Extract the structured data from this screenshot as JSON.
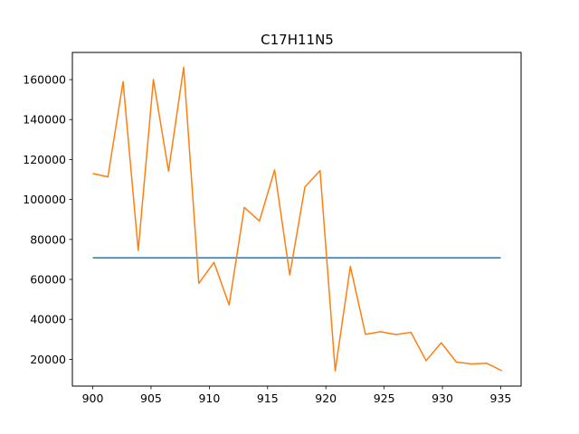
{
  "chart_data": {
    "type": "line",
    "title": "C17H11N5",
    "xlabel": "",
    "ylabel": "",
    "xlim": [
      898.25,
      936.75
    ],
    "ylim": [
      6600,
      173600
    ],
    "xticks": [
      900,
      905,
      910,
      915,
      920,
      925,
      930,
      935
    ],
    "yticks": [
      20000,
      40000,
      60000,
      80000,
      100000,
      120000,
      140000,
      160000
    ],
    "xtick_labels": [
      "900",
      "905",
      "910",
      "915",
      "920",
      "925",
      "930",
      "935"
    ],
    "ytick_labels": [
      "20000",
      "40000",
      "60000",
      "80000",
      "100000",
      "120000",
      "140000",
      "160000"
    ],
    "grid": false,
    "series": [
      {
        "color": "#1f77b4",
        "x": [
          900,
          935
        ],
        "y": [
          70800,
          70800
        ]
      },
      {
        "color": "#ff7f0e",
        "x": [
          900.0,
          901.3,
          902.6,
          903.9,
          905.2,
          906.5,
          907.8,
          909.1,
          910.4,
          911.7,
          913.0,
          914.3,
          915.6,
          916.9,
          918.2,
          919.5,
          920.8,
          922.1,
          923.4,
          924.7,
          926.0,
          927.3,
          928.6,
          929.9,
          931.2,
          932.5,
          933.8,
          935.1
        ],
        "y": [
          113000,
          111300,
          159000,
          74500,
          160000,
          114200,
          166200,
          58000,
          68500,
          47200,
          96000,
          89200,
          114800,
          62200,
          106200,
          114500,
          14200,
          66500,
          32500,
          33800,
          32400,
          33500,
          19300,
          28300,
          18600,
          17700,
          18000,
          14300
        ]
      }
    ]
  }
}
